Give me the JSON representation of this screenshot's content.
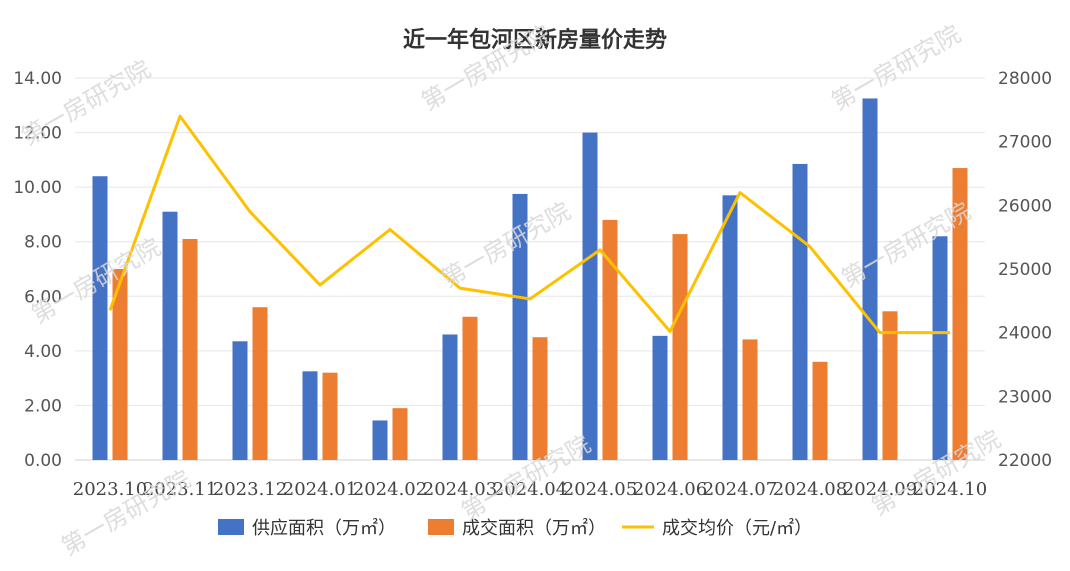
{
  "chart_data": {
    "type": "bar",
    "title": "近一年包河区新房量价走势",
    "categories": [
      "2023.10",
      "2023.11",
      "2023.12",
      "2024.01",
      "2024.02",
      "2024.03",
      "2024.04",
      "2024.05",
      "2024.06",
      "2024.07",
      "2024.08",
      "2024.09",
      "2024.10"
    ],
    "series": [
      {
        "name": "供应面积（万㎡）",
        "type": "bar",
        "axis": "left",
        "color": "#4472C4",
        "values": [
          10.4,
          9.1,
          4.35,
          3.25,
          1.45,
          4.6,
          9.75,
          12.0,
          4.55,
          9.7,
          10.85,
          13.25,
          8.2
        ]
      },
      {
        "name": "成交面积（万㎡）",
        "type": "bar",
        "axis": "left",
        "color": "#ED7D31",
        "values": [
          7.0,
          8.1,
          5.6,
          3.2,
          1.9,
          5.25,
          4.5,
          8.8,
          8.28,
          4.42,
          3.6,
          5.45,
          10.7
        ]
      },
      {
        "name": "成交均价（元/㎡）",
        "type": "line",
        "axis": "right",
        "color": "#FFC000",
        "values": [
          24350,
          27400,
          25900,
          24750,
          25620,
          24700,
          24530,
          25300,
          24020,
          26200,
          25350,
          24000,
          24000
        ]
      }
    ],
    "y_left": {
      "min": 0,
      "max": 14,
      "step": 2,
      "tick_labels": [
        "0.00",
        "2.00",
        "4.00",
        "6.00",
        "8.00",
        "10.00",
        "12.00",
        "14.00"
      ]
    },
    "y_right": {
      "min": 22000,
      "max": 28000,
      "step": 1000,
      "tick_labels": [
        "22000",
        "23000",
        "24000",
        "25000",
        "26000",
        "27000",
        "28000"
      ]
    },
    "grid": true,
    "legend": "bottom"
  },
  "watermark": {
    "text": "第一房研究院"
  }
}
